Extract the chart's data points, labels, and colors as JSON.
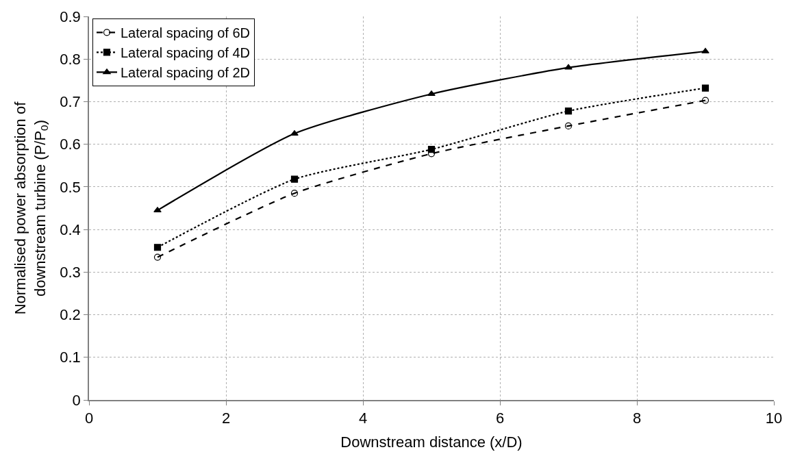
{
  "chart_data": {
    "type": "line",
    "xlabel": "Downstream distance (x/D)",
    "ylabel": "Normalised power absorption of\ndownstream turbine (P/P$_{0}$)",
    "x": [
      1,
      3,
      5,
      7,
      9
    ],
    "series": [
      {
        "name": "Lateral spacing of 6D",
        "color": "#000000",
        "marker": "circle",
        "line_style": "dashed",
        "values": [
          0.335,
          0.485,
          0.578,
          0.643,
          0.703
        ]
      },
      {
        "name": "Lateral spacing of 4D",
        "color": "#000000",
        "marker": "square",
        "line_style": "dotted",
        "values": [
          0.358,
          0.518,
          0.588,
          0.678,
          0.732
        ]
      },
      {
        "name": "Lateral spacing of 2D",
        "color": "#000000",
        "marker": "triangle",
        "line_style": "solid",
        "values": [
          0.445,
          0.625,
          0.718,
          0.78,
          0.818
        ]
      }
    ],
    "xlim": [
      0,
      10
    ],
    "xticks": [
      0,
      2,
      4,
      6,
      8,
      10
    ],
    "ylim": [
      0,
      0.9
    ],
    "yticks": [
      0,
      0.1,
      0.2,
      0.3,
      0.4,
      0.5,
      0.6,
      0.7,
      0.8,
      0.9
    ],
    "grid": true,
    "legend": "top left"
  }
}
